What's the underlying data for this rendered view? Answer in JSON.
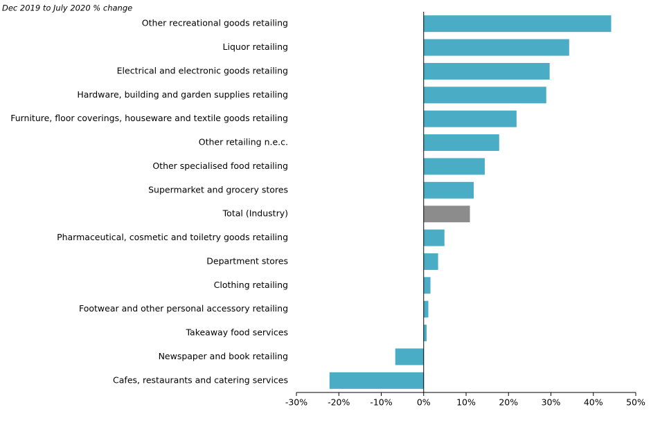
{
  "chart_data": {
    "type": "hbar",
    "title": "Dec 2019 to July 2020 % change",
    "categories": [
      "Other recreational goods retailing",
      "Liquor retailing",
      "Electrical and electronic goods retailing",
      "Hardware, building and garden supplies retailing",
      "Furniture, floor coverings, houseware and textile goods retailing",
      "Other retailing n.e.c.",
      "Other specialised food retailing",
      "Supermarket and grocery stores",
      "Total (Industry)",
      "Pharmaceutical, cosmetic and toiletry goods retailing",
      "Department stores",
      "Clothing retailing",
      "Footwear and other personal accessory retailing",
      "Takeaway food services",
      "Newspaper and book retailing",
      "Cafes, restaurants and catering services"
    ],
    "values": [
      44.2,
      34.3,
      29.7,
      28.9,
      21.9,
      17.8,
      14.4,
      11.8,
      10.9,
      4.9,
      3.4,
      1.6,
      1.1,
      0.7,
      -6.7,
      -22.2
    ],
    "colors": [
      "#4bacc6",
      "#4bacc6",
      "#4bacc6",
      "#4bacc6",
      "#4bacc6",
      "#4bacc6",
      "#4bacc6",
      "#4bacc6",
      "#8c8c8c",
      "#4bacc6",
      "#4bacc6",
      "#4bacc6",
      "#4bacc6",
      "#4bacc6",
      "#4bacc6",
      "#4bacc6"
    ],
    "xlim": [
      -30,
      50
    ],
    "xticks": [
      {
        "value": -30,
        "label": "-30%"
      },
      {
        "value": -20,
        "label": "-20%"
      },
      {
        "value": -10,
        "label": "-10%"
      },
      {
        "value": 0,
        "label": "0%"
      },
      {
        "value": 10,
        "label": "10%"
      },
      {
        "value": 20,
        "label": "20%"
      },
      {
        "value": 30,
        "label": "30%"
      },
      {
        "value": 40,
        "label": "40%"
      },
      {
        "value": 50,
        "label": "50%"
      }
    ]
  }
}
